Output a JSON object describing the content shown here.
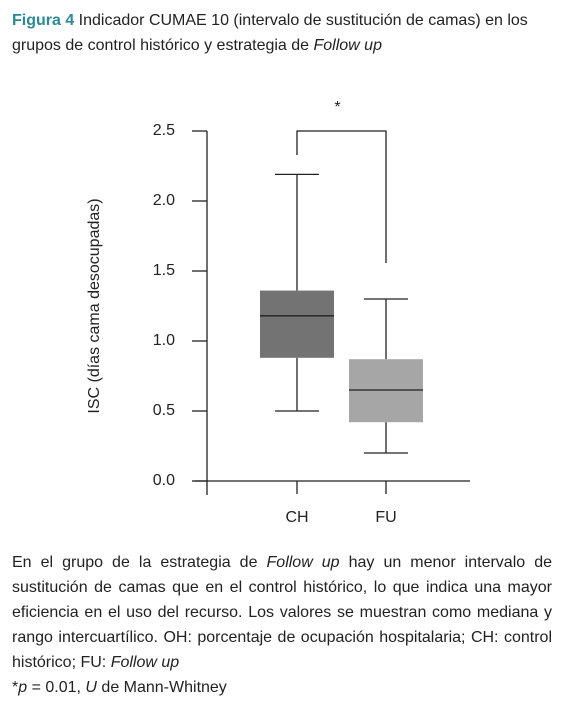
{
  "caption": {
    "label": "Figura 4",
    "title": " Indicador CUMAE 10 (intervalo de sustitución de camas) en los grupos de control histórico y estrategia de ",
    "title_italic": "Follow up"
  },
  "chart_data": {
    "type": "box",
    "ylabel": "ISC (días cama desocupadas)",
    "categories": [
      "CH",
      "FU"
    ],
    "colors": [
      "#737373",
      "#a6a6a6"
    ],
    "boxes": [
      {
        "min": 0.5,
        "q1": 0.88,
        "median": 1.18,
        "q3": 1.36,
        "max": 2.19
      },
      {
        "min": 0.2,
        "q1": 0.42,
        "median": 0.65,
        "q3": 0.87,
        "max": 1.3
      }
    ],
    "ylim": [
      0,
      2.5
    ],
    "yticks": [
      {
        "value": 0,
        "label": "0.0"
      },
      0.5,
      {
        "value": 1,
        "label": "1.0"
      },
      1.5,
      {
        "value": 2,
        "label": "2.0"
      },
      2.5
    ],
    "significance_label": "*"
  },
  "note": {
    "parts": [
      {
        "text": "En el grupo de la estrategia de "
      },
      {
        "text": "Follow up",
        "italic": true
      },
      {
        "text": " hay un menor intervalo de sustitución de camas que en el control histórico, lo que indica una mayor eficiencia en el uso del recurso. Los valores se muestran como mediana y rango intercuartílico. OH: porcentaje de ocupación hospitalaria; CH: control histórico; FU: "
      },
      {
        "text": "Follow up",
        "italic": true
      }
    ],
    "footnote": [
      {
        "text": "*"
      },
      {
        "text": "p",
        "italic": true
      },
      {
        "text": " = 0.01, "
      },
      {
        "text": "U",
        "italic": true
      },
      {
        "text": " de Mann-Whitney"
      }
    ]
  }
}
